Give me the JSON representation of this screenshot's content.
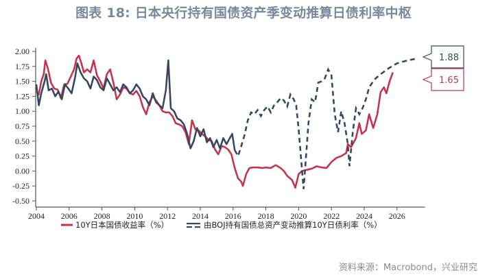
{
  "title": "图表 18: 日本央行持有国债资产季变动推算日债利率中枢",
  "source": "资料来源：Macrobond，兴业研究",
  "colors": {
    "jgb_10y": "#c8334b",
    "boj_implied": "#3a4660",
    "axis": "#555555",
    "title": "#7d879c"
  },
  "callouts": [
    {
      "label": "1.88",
      "color": "#3a4660"
    },
    {
      "label": "1.65",
      "color": "#c8334b"
    }
  ],
  "legend": [
    {
      "label": "10Y日本国债收益率（%）",
      "style": "solid"
    },
    {
      "label": "由BOJ持有国债总资产变动推算10Y日债利率（%）",
      "style": "dashed"
    }
  ],
  "chart_data": {
    "type": "line",
    "title": "图表 18: 日本央行持有国债资产季变动推算日债利率中枢",
    "xlabel": "",
    "ylabel": "",
    "xlim": [
      2004,
      2027.7
    ],
    "ylim": [
      -0.5,
      2.0
    ],
    "x_ticks": [
      "2004",
      "2006",
      "2008",
      "2010",
      "2012",
      "2014",
      "2016",
      "2018",
      "2020",
      "2022",
      "2024",
      "2026"
    ],
    "y_ticks": [
      "2.00",
      "1.75",
      "1.50",
      "1.25",
      "1.00",
      "0.75",
      "0.50",
      "0.25",
      "0.00",
      "-0.25",
      "-0.50"
    ],
    "grid": false,
    "legend_position": "bottom",
    "series": [
      {
        "name": "10Y日本国债收益率（%）",
        "style": "solid",
        "last_value": 1.65,
        "points": [
          [
            2004.0,
            1.33
          ],
          [
            2004.15,
            1.28
          ],
          [
            2004.3,
            1.5
          ],
          [
            2004.45,
            1.62
          ],
          [
            2004.55,
            1.85
          ],
          [
            2004.7,
            1.72
          ],
          [
            2004.9,
            1.47
          ],
          [
            2005.1,
            1.38
          ],
          [
            2005.3,
            1.36
          ],
          [
            2005.5,
            1.22
          ],
          [
            2005.7,
            1.45
          ],
          [
            2005.9,
            1.46
          ],
          [
            2006.1,
            1.58
          ],
          [
            2006.3,
            1.7
          ],
          [
            2006.45,
            1.88
          ],
          [
            2006.6,
            1.93
          ],
          [
            2006.75,
            1.8
          ],
          [
            2006.9,
            1.65
          ],
          [
            2007.1,
            1.7
          ],
          [
            2007.3,
            1.65
          ],
          [
            2007.5,
            1.85
          ],
          [
            2007.7,
            1.6
          ],
          [
            2007.9,
            1.5
          ],
          [
            2008.1,
            1.38
          ],
          [
            2008.3,
            1.62
          ],
          [
            2008.5,
            1.7
          ],
          [
            2008.7,
            1.48
          ],
          [
            2008.9,
            1.2
          ],
          [
            2009.1,
            1.28
          ],
          [
            2009.3,
            1.4
          ],
          [
            2009.5,
            1.38
          ],
          [
            2009.7,
            1.3
          ],
          [
            2009.9,
            1.28
          ],
          [
            2010.1,
            1.34
          ],
          [
            2010.3,
            1.25
          ],
          [
            2010.5,
            1.07
          ],
          [
            2010.7,
            0.95
          ],
          [
            2010.9,
            1.15
          ],
          [
            2011.1,
            1.25
          ],
          [
            2011.3,
            1.18
          ],
          [
            2011.5,
            1.1
          ],
          [
            2011.7,
            1.0
          ],
          [
            2011.9,
            0.98
          ],
          [
            2012.1,
            0.98
          ],
          [
            2012.3,
            0.92
          ],
          [
            2012.5,
            0.8
          ],
          [
            2012.7,
            0.78
          ],
          [
            2012.9,
            0.75
          ],
          [
            2013.1,
            0.65
          ],
          [
            2013.3,
            0.45
          ],
          [
            2013.5,
            0.85
          ],
          [
            2013.7,
            0.7
          ],
          [
            2013.9,
            0.68
          ],
          [
            2014.1,
            0.62
          ],
          [
            2014.3,
            0.58
          ],
          [
            2014.5,
            0.52
          ],
          [
            2014.7,
            0.5
          ],
          [
            2014.9,
            0.36
          ],
          [
            2015.1,
            0.28
          ],
          [
            2015.3,
            0.42
          ],
          [
            2015.5,
            0.4
          ],
          [
            2015.7,
            0.36
          ],
          [
            2015.9,
            0.28
          ],
          [
            2016.1,
            0.05
          ],
          [
            2016.3,
            -0.12
          ],
          [
            2016.5,
            -0.18
          ],
          [
            2016.6,
            -0.25
          ],
          [
            2016.8,
            -0.05
          ],
          [
            2017.0,
            0.05
          ],
          [
            2017.2,
            0.06
          ],
          [
            2017.5,
            0.06
          ],
          [
            2017.8,
            0.05
          ],
          [
            2018.0,
            0.06
          ],
          [
            2018.3,
            0.05
          ],
          [
            2018.6,
            0.1
          ],
          [
            2018.9,
            0.05
          ],
          [
            2019.1,
            0.0
          ],
          [
            2019.3,
            -0.08
          ],
          [
            2019.6,
            -0.15
          ],
          [
            2019.8,
            -0.28
          ],
          [
            2020.0,
            -0.05
          ],
          [
            2020.2,
            0.0
          ],
          [
            2020.5,
            0.02
          ],
          [
            2020.8,
            0.04
          ],
          [
            2021.1,
            0.08
          ],
          [
            2021.4,
            0.06
          ],
          [
            2021.7,
            0.05
          ],
          [
            2022.0,
            0.15
          ],
          [
            2022.3,
            0.22
          ],
          [
            2022.6,
            0.25
          ],
          [
            2022.9,
            0.3
          ],
          [
            2023.0,
            0.45
          ],
          [
            2023.2,
            0.4
          ],
          [
            2023.5,
            0.55
          ],
          [
            2023.7,
            0.8
          ],
          [
            2023.85,
            0.62
          ],
          [
            2024.1,
            0.68
          ],
          [
            2024.3,
            0.95
          ],
          [
            2024.55,
            0.72
          ],
          [
            2024.8,
            0.95
          ],
          [
            2025.0,
            1.32
          ],
          [
            2025.2,
            1.4
          ],
          [
            2025.35,
            1.3
          ],
          [
            2025.55,
            1.5
          ],
          [
            2025.75,
            1.65
          ]
        ]
      },
      {
        "name": "由BOJ持有国债总资产变动推算10Y日债利率（%）",
        "style": "solid-then-dashed",
        "dash_start": 2016.2,
        "last_value": 1.88,
        "points": [
          [
            2004.0,
            1.45
          ],
          [
            2004.15,
            1.1
          ],
          [
            2004.3,
            1.3
          ],
          [
            2004.5,
            1.5
          ],
          [
            2004.6,
            1.62
          ],
          [
            2004.75,
            1.35
          ],
          [
            2004.95,
            1.38
          ],
          [
            2005.15,
            1.25
          ],
          [
            2005.35,
            1.33
          ],
          [
            2005.55,
            1.2
          ],
          [
            2005.75,
            1.45
          ],
          [
            2005.95,
            1.38
          ],
          [
            2006.15,
            1.3
          ],
          [
            2006.35,
            1.55
          ],
          [
            2006.5,
            1.8
          ],
          [
            2006.7,
            1.65
          ],
          [
            2006.9,
            1.55
          ],
          [
            2007.1,
            1.5
          ],
          [
            2007.3,
            1.38
          ],
          [
            2007.5,
            1.58
          ],
          [
            2007.7,
            1.52
          ],
          [
            2007.9,
            1.4
          ],
          [
            2008.1,
            1.35
          ],
          [
            2008.3,
            1.55
          ],
          [
            2008.5,
            1.45
          ],
          [
            2008.7,
            1.35
          ],
          [
            2008.9,
            1.4
          ],
          [
            2009.1,
            1.32
          ],
          [
            2009.3,
            1.45
          ],
          [
            2009.5,
            1.4
          ],
          [
            2009.7,
            1.3
          ],
          [
            2009.9,
            1.35
          ],
          [
            2010.1,
            1.45
          ],
          [
            2010.3,
            1.38
          ],
          [
            2010.5,
            1.25
          ],
          [
            2010.7,
            1.2
          ],
          [
            2010.9,
            1.1
          ],
          [
            2011.1,
            1.3
          ],
          [
            2011.3,
            1.15
          ],
          [
            2011.5,
            1.1
          ],
          [
            2011.7,
            1.05
          ],
          [
            2011.9,
            1.35
          ],
          [
            2012.05,
            1.85
          ],
          [
            2012.2,
            1.05
          ],
          [
            2012.4,
            1.0
          ],
          [
            2012.6,
            0.88
          ],
          [
            2012.8,
            0.85
          ],
          [
            2013.0,
            0.78
          ],
          [
            2013.2,
            0.62
          ],
          [
            2013.4,
            0.38
          ],
          [
            2013.6,
            0.5
          ],
          [
            2013.8,
            0.72
          ],
          [
            2014.0,
            0.58
          ],
          [
            2014.2,
            0.7
          ],
          [
            2014.4,
            0.48
          ],
          [
            2014.6,
            0.55
          ],
          [
            2014.8,
            0.4
          ],
          [
            2015.0,
            0.52
          ],
          [
            2015.2,
            0.38
          ],
          [
            2015.4,
            0.55
          ],
          [
            2015.6,
            0.45
          ],
          [
            2015.8,
            0.55
          ],
          [
            2015.95,
            0.62
          ],
          [
            2016.1,
            0.35
          ],
          [
            2016.3,
            0.25
          ],
          [
            2016.5,
            0.42
          ],
          [
            2016.7,
            0.6
          ],
          [
            2016.9,
            0.85
          ],
          [
            2017.1,
            0.98
          ],
          [
            2017.3,
            0.95
          ],
          [
            2017.5,
            1.02
          ],
          [
            2017.7,
            0.92
          ],
          [
            2017.9,
            1.02
          ],
          [
            2018.1,
            1.08
          ],
          [
            2018.3,
            0.98
          ],
          [
            2018.5,
            1.1
          ],
          [
            2018.7,
            1.15
          ],
          [
            2018.9,
            1.22
          ],
          [
            2019.1,
            1.18
          ],
          [
            2019.3,
            1.08
          ],
          [
            2019.5,
            1.28
          ],
          [
            2019.7,
            1.2
          ],
          [
            2019.85,
            1.1
          ],
          [
            2020.0,
            0.7
          ],
          [
            2020.15,
            0.2
          ],
          [
            2020.3,
            -0.3
          ],
          [
            2020.45,
            0.25
          ],
          [
            2020.6,
            0.8
          ],
          [
            2020.8,
            1.2
          ],
          [
            2021.0,
            1.15
          ],
          [
            2021.2,
            1.48
          ],
          [
            2021.4,
            1.5
          ],
          [
            2021.6,
            1.55
          ],
          [
            2021.8,
            1.7
          ],
          [
            2022.0,
            1.6
          ],
          [
            2022.2,
            0.95
          ],
          [
            2022.4,
            0.65
          ],
          [
            2022.6,
            1.0
          ],
          [
            2022.8,
            0.8
          ],
          [
            2023.0,
            0.45
          ],
          [
            2023.1,
            0.08
          ],
          [
            2023.3,
            0.65
          ],
          [
            2023.5,
            1.05
          ],
          [
            2023.7,
            0.95
          ],
          [
            2023.9,
            1.05
          ],
          [
            2024.1,
            1.2
          ],
          [
            2024.3,
            1.4
          ],
          [
            2024.5,
            1.48
          ],
          [
            2024.7,
            1.55
          ],
          [
            2025.0,
            1.62
          ],
          [
            2025.5,
            1.72
          ],
          [
            2026.0,
            1.8
          ],
          [
            2026.5,
            1.84
          ],
          [
            2027.0,
            1.87
          ],
          [
            2027.3,
            1.88
          ]
        ]
      }
    ]
  }
}
